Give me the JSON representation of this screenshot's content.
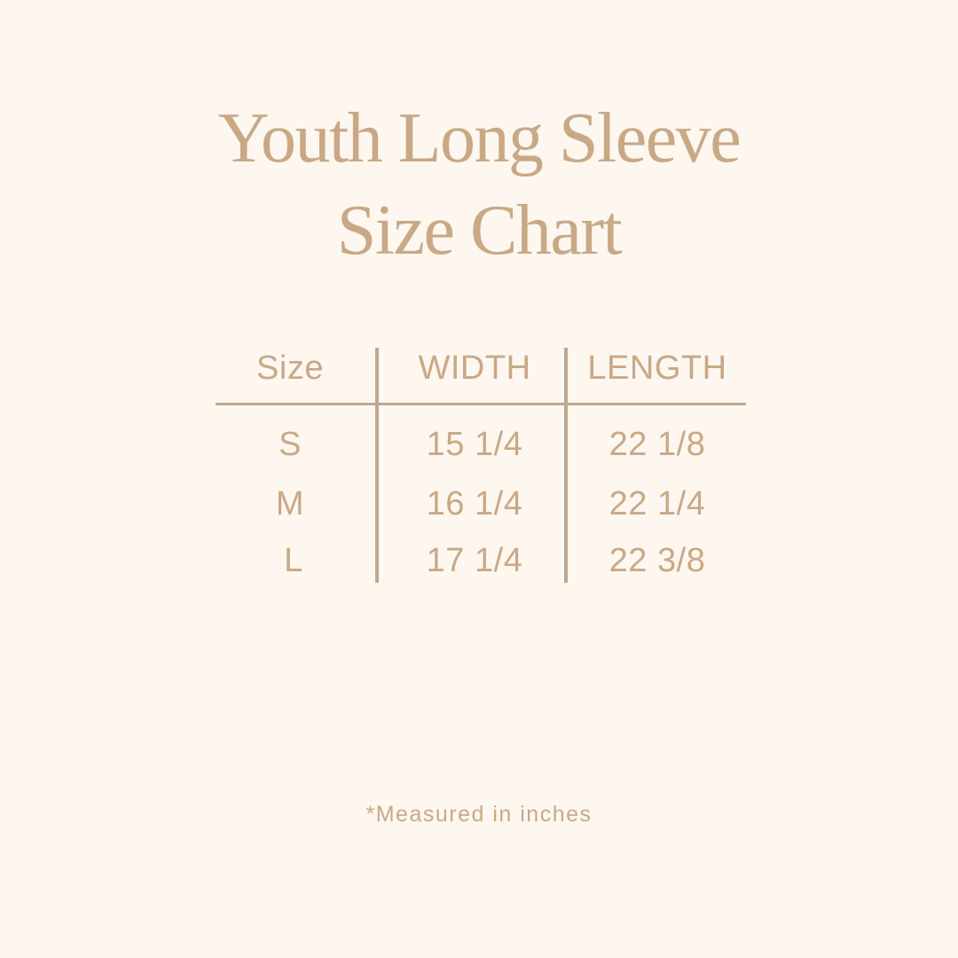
{
  "title": {
    "line1": "Youth Long Sleeve",
    "line2": "Size Chart"
  },
  "colors": {
    "background": "#fdf7ef",
    "text": "#c9a886",
    "rule": "#bea892"
  },
  "table": {
    "headers": [
      "Size",
      "WIDTH",
      "LENGTH"
    ],
    "rows": [
      {
        "size": "S",
        "width": "15 1/4",
        "length": "22 1/8"
      },
      {
        "size": "M",
        "width": "16 1/4",
        "length": "22 1/4"
      },
      {
        "size": "L",
        "width": "17 1/4",
        "length": "22 3/8"
      }
    ]
  },
  "footnote": "*Measured in inches"
}
